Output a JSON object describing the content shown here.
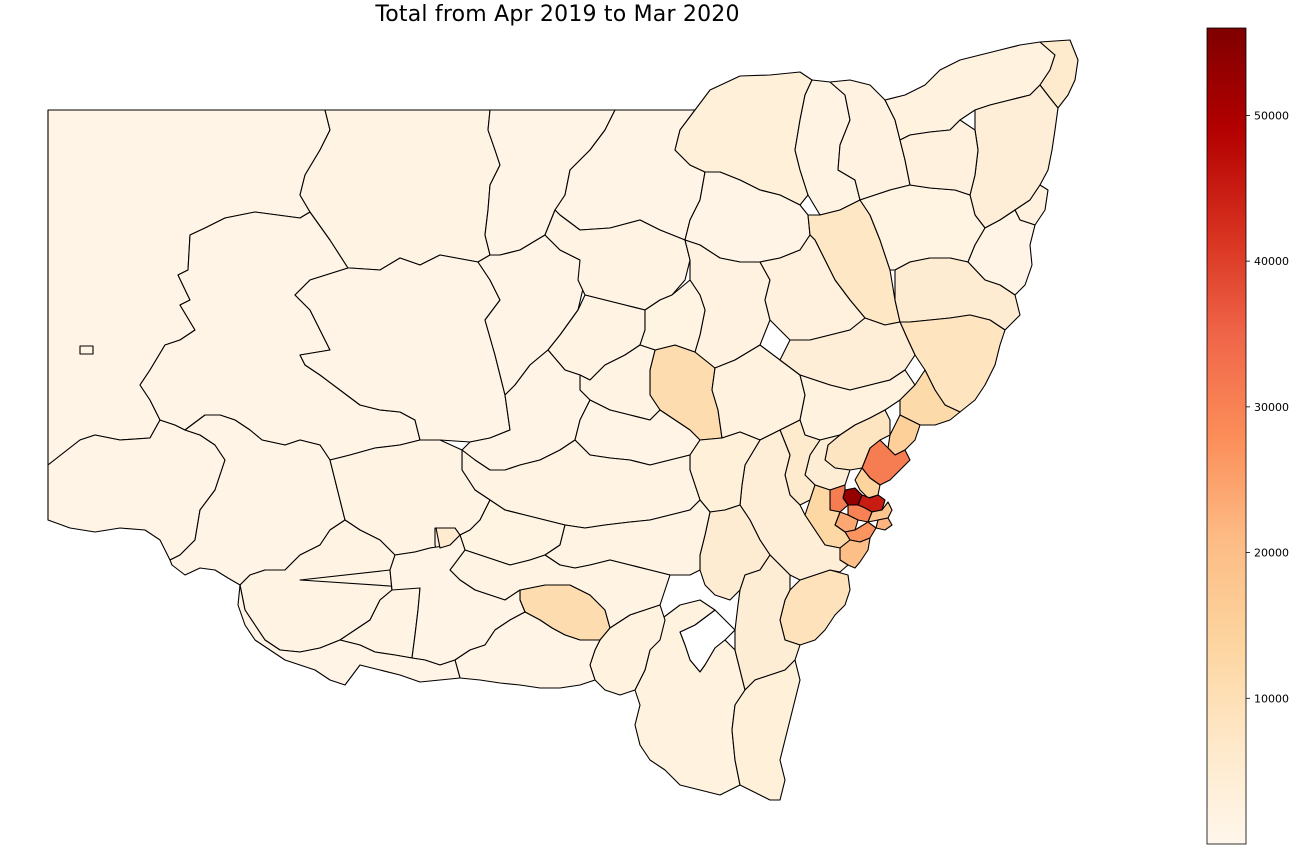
{
  "title": "Total from Apr 2019 to Mar 2020",
  "colormap": {
    "name": "OrRd",
    "min": 0,
    "max": 56000,
    "stops": [
      "#fff7ec",
      "#fee8c8",
      "#fdd49e",
      "#fdbb84",
      "#fc8d59",
      "#ef6548",
      "#d7301f",
      "#b30000",
      "#7f0000"
    ]
  },
  "colorbar": {
    "ticks": [
      10000,
      20000,
      30000,
      40000,
      50000
    ],
    "tick_labels": [
      "10000",
      "20000",
      "30000",
      "40000",
      "50000"
    ]
  },
  "map": {
    "missing_color": "#ffffff",
    "regions": [
      {
        "id": "far-west-1",
        "value": 1200
      },
      {
        "id": "far-west-2",
        "value": 1200
      },
      {
        "id": "far-west-3",
        "value": 1300
      },
      {
        "id": "far-west-4",
        "value": 1300
      },
      {
        "id": "north-west-1",
        "value": 1500
      },
      {
        "id": "north-west-2",
        "value": 1400
      },
      {
        "id": "north-west-3",
        "value": 1400
      },
      {
        "id": "north-1",
        "value": 3500
      },
      {
        "id": "north-2",
        "value": 1500
      },
      {
        "id": "north-3",
        "value": 2200
      },
      {
        "id": "north-coast-1",
        "value": 2500
      },
      {
        "id": "north-coast-2",
        "value": 6000
      },
      {
        "id": "north-coast-3",
        "value": 4000
      },
      {
        "id": "north-coast-4",
        "value": 3000
      },
      {
        "id": "new-england-1",
        "value": 7500
      },
      {
        "id": "new-england-2",
        "value": 2000
      },
      {
        "id": "new-england-3",
        "value": 3000
      },
      {
        "id": "mid-north-coast-1",
        "value": 8500
      },
      {
        "id": "mid-north-coast-2",
        "value": 5000
      },
      {
        "id": "central-west-1",
        "value": 1800
      },
      {
        "id": "central-west-2",
        "value": 1600
      },
      {
        "id": "central-west-3",
        "value": 11000
      },
      {
        "id": "central-west-4",
        "value": 2200
      },
      {
        "id": "central-west-5",
        "value": 2000
      },
      {
        "id": "central-west-6",
        "value": 1600
      },
      {
        "id": "central-west-7",
        "value": 2500
      },
      {
        "id": "central-west-8",
        "value": 3000
      },
      {
        "id": "hunter-1",
        "value": 4000
      },
      {
        "id": "hunter-2",
        "value": 2500
      },
      {
        "id": "newcastle",
        "value": 31000
      },
      {
        "id": "port-stephens",
        "value": 15000
      },
      {
        "id": "great-lakes",
        "value": 12000
      },
      {
        "id": "riverina-1",
        "value": 1800
      },
      {
        "id": "riverina-2",
        "value": 1500
      },
      {
        "id": "wagga-wagga",
        "value": 11000
      },
      {
        "id": "riverina-3",
        "value": 2000
      },
      {
        "id": "riverina-4",
        "value": 1700
      },
      {
        "id": "riverina-5",
        "value": 1500
      },
      {
        "id": "riverina-6",
        "value": 2500
      },
      {
        "id": "murray-1",
        "value": 1500
      },
      {
        "id": "murray-2",
        "value": 1600
      },
      {
        "id": "murray-3",
        "value": 1400
      },
      {
        "id": "murray-4",
        "value": 5500
      },
      {
        "id": "southern-tablelands-1",
        "value": 4000
      },
      {
        "id": "southern-tablelands-2",
        "value": 3500
      },
      {
        "id": "southern-tablelands-3",
        "value": 5000
      },
      {
        "id": "snowy-monaro",
        "value": 2500
      },
      {
        "id": "south-coast-1",
        "value": 4500
      },
      {
        "id": "south-coast-2",
        "value": 3500
      },
      {
        "id": "shoalhaven",
        "value": 9000
      },
      {
        "id": "illawarra",
        "value": 20000
      },
      {
        "id": "blue-mountains",
        "value": 6000
      },
      {
        "id": "hawkesbury",
        "value": 4500
      },
      {
        "id": "penrith",
        "value": 31000
      },
      {
        "id": "blacktown",
        "value": 53000
      },
      {
        "id": "campbelltown",
        "value": 27000
      },
      {
        "id": "liverpool",
        "value": 24000
      },
      {
        "id": "wollondilly",
        "value": 13000
      },
      {
        "id": "central-coast",
        "value": 8000
      },
      {
        "id": "hornsby",
        "value": 14000
      },
      {
        "id": "sydney-inner-1",
        "value": 45000
      },
      {
        "id": "sydney-inner-2",
        "value": 30000
      },
      {
        "id": "sydney-inner-3",
        "value": 18000
      },
      {
        "id": "sydney-inner-4",
        "value": 22000
      },
      {
        "id": "act",
        "value": null
      }
    ]
  }
}
